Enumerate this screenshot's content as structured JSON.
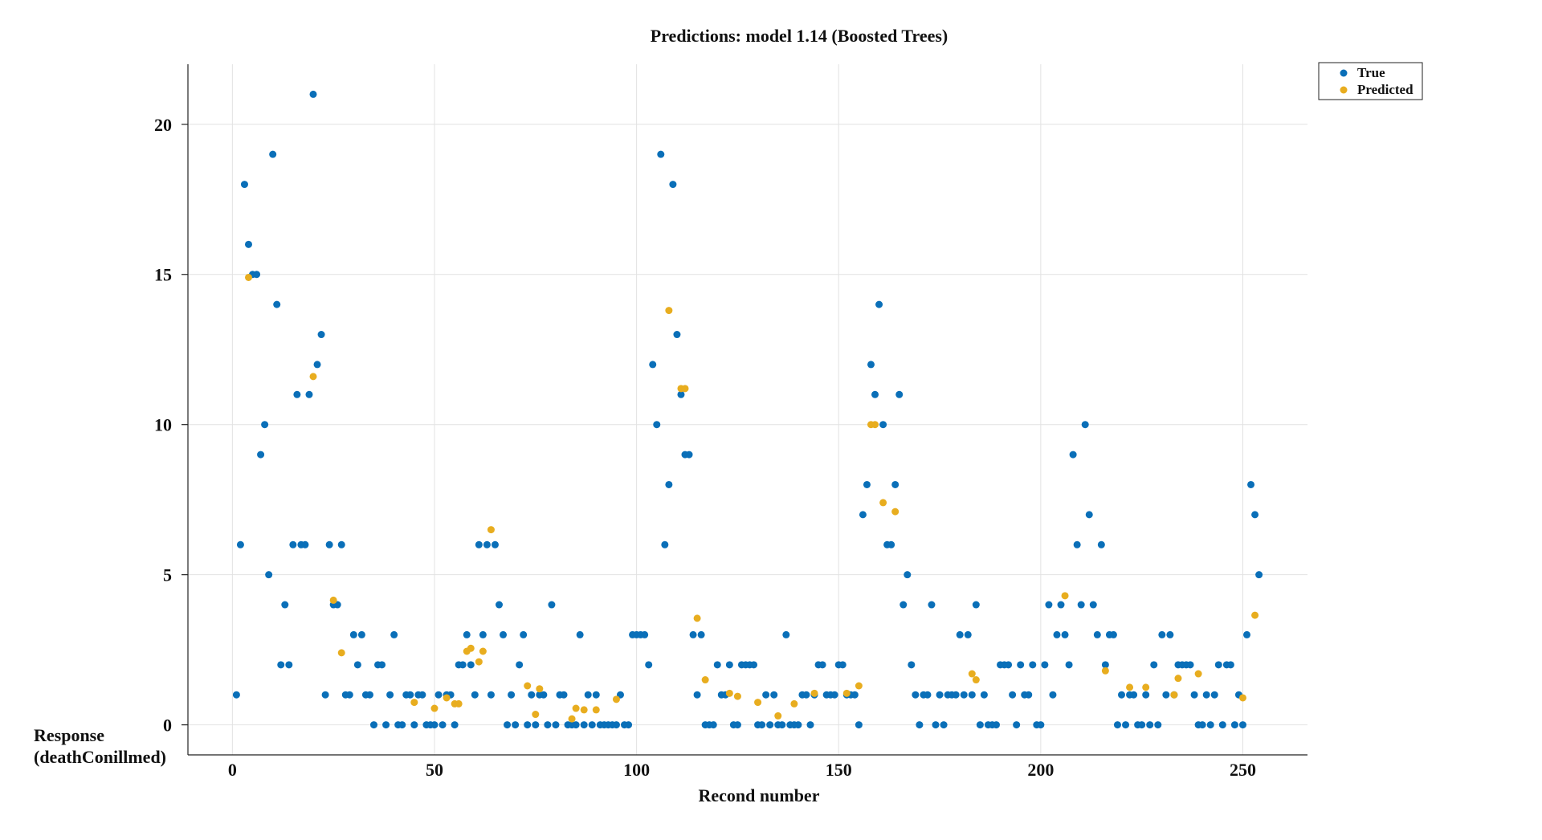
{
  "chart_data": {
    "type": "scatter",
    "title": "Predictions: model 1.14 (Boosted Trees)",
    "xlabel": "Recond number",
    "ylabel": [
      "Response",
      "(deathConillmed)"
    ],
    "xlim": [
      -11,
      266
    ],
    "ylim": [
      -1,
      22
    ],
    "xticks": [
      0,
      50,
      100,
      150,
      200,
      250
    ],
    "yticks": [
      0,
      5,
      10,
      15,
      20
    ],
    "grid": true,
    "legend_position": "top-right",
    "series": [
      {
        "name": "True",
        "color": "#0a6fb8",
        "points": [
          [
            1,
            1
          ],
          [
            2,
            6
          ],
          [
            3,
            18
          ],
          [
            4,
            16
          ],
          [
            5,
            15
          ],
          [
            6,
            15
          ],
          [
            7,
            9
          ],
          [
            8,
            10
          ],
          [
            9,
            5
          ],
          [
            10,
            19
          ],
          [
            11,
            14
          ],
          [
            12,
            2
          ],
          [
            13,
            4
          ],
          [
            14,
            2
          ],
          [
            15,
            6
          ],
          [
            16,
            11
          ],
          [
            17,
            6
          ],
          [
            18,
            6
          ],
          [
            19,
            11
          ],
          [
            20,
            21
          ],
          [
            21,
            12
          ],
          [
            22,
            13
          ],
          [
            23,
            1
          ],
          [
            24,
            6
          ],
          [
            25,
            4
          ],
          [
            26,
            4
          ],
          [
            27,
            6
          ],
          [
            28,
            1
          ],
          [
            29,
            1
          ],
          [
            30,
            3
          ],
          [
            31,
            2
          ],
          [
            32,
            3
          ],
          [
            33,
            1
          ],
          [
            34,
            1
          ],
          [
            35,
            0
          ],
          [
            36,
            2
          ],
          [
            37,
            2
          ],
          [
            38,
            0
          ],
          [
            39,
            1
          ],
          [
            40,
            3
          ],
          [
            41,
            0
          ],
          [
            42,
            0
          ],
          [
            43,
            1
          ],
          [
            44,
            1
          ],
          [
            45,
            0
          ],
          [
            46,
            1
          ],
          [
            47,
            1
          ],
          [
            48,
            0
          ],
          [
            49,
            0
          ],
          [
            50,
            0
          ],
          [
            51,
            1
          ],
          [
            52,
            0
          ],
          [
            53,
            1
          ],
          [
            54,
            1
          ],
          [
            55,
            0
          ],
          [
            56,
            2
          ],
          [
            57,
            2
          ],
          [
            58,
            3
          ],
          [
            59,
            2
          ],
          [
            60,
            1
          ],
          [
            61,
            6
          ],
          [
            62,
            3
          ],
          [
            63,
            6
          ],
          [
            64,
            1
          ],
          [
            65,
            6
          ],
          [
            66,
            4
          ],
          [
            67,
            3
          ],
          [
            68,
            0
          ],
          [
            69,
            1
          ],
          [
            70,
            0
          ],
          [
            71,
            2
          ],
          [
            72,
            3
          ],
          [
            73,
            0
          ],
          [
            74,
            1
          ],
          [
            75,
            0
          ],
          [
            76,
            1
          ],
          [
            77,
            1
          ],
          [
            78,
            0
          ],
          [
            79,
            4
          ],
          [
            80,
            0
          ],
          [
            81,
            1
          ],
          [
            82,
            1
          ],
          [
            83,
            0
          ],
          [
            84,
            0
          ],
          [
            85,
            0
          ],
          [
            86,
            3
          ],
          [
            87,
            0
          ],
          [
            88,
            1
          ],
          [
            89,
            0
          ],
          [
            90,
            1
          ],
          [
            91,
            0
          ],
          [
            92,
            0
          ],
          [
            93,
            0
          ],
          [
            94,
            0
          ],
          [
            95,
            0
          ],
          [
            96,
            1
          ],
          [
            97,
            0
          ],
          [
            98,
            0
          ],
          [
            99,
            3
          ],
          [
            100,
            3
          ],
          [
            101,
            3
          ],
          [
            102,
            3
          ],
          [
            103,
            2
          ],
          [
            104,
            12
          ],
          [
            105,
            10
          ],
          [
            106,
            19
          ],
          [
            107,
            6
          ],
          [
            108,
            8
          ],
          [
            109,
            18
          ],
          [
            110,
            13
          ],
          [
            111,
            11
          ],
          [
            112,
            9
          ],
          [
            113,
            9
          ],
          [
            114,
            3
          ],
          [
            115,
            1
          ],
          [
            116,
            3
          ],
          [
            117,
            0
          ],
          [
            118,
            0
          ],
          [
            119,
            0
          ],
          [
            120,
            2
          ],
          [
            121,
            1
          ],
          [
            122,
            1
          ],
          [
            123,
            2
          ],
          [
            124,
            0
          ],
          [
            125,
            0
          ],
          [
            126,
            2
          ],
          [
            127,
            2
          ],
          [
            128,
            2
          ],
          [
            129,
            2
          ],
          [
            130,
            0
          ],
          [
            131,
            0
          ],
          [
            132,
            1
          ],
          [
            133,
            0
          ],
          [
            134,
            1
          ],
          [
            135,
            0
          ],
          [
            136,
            0
          ],
          [
            137,
            3
          ],
          [
            138,
            0
          ],
          [
            139,
            0
          ],
          [
            140,
            0
          ],
          [
            141,
            1
          ],
          [
            142,
            1
          ],
          [
            143,
            0
          ],
          [
            144,
            1
          ],
          [
            145,
            2
          ],
          [
            146,
            2
          ],
          [
            147,
            1
          ],
          [
            148,
            1
          ],
          [
            149,
            1
          ],
          [
            150,
            2
          ],
          [
            151,
            2
          ],
          [
            152,
            1
          ],
          [
            153,
            1
          ],
          [
            154,
            1
          ],
          [
            155,
            0
          ],
          [
            156,
            7
          ],
          [
            157,
            8
          ],
          [
            158,
            12
          ],
          [
            159,
            11
          ],
          [
            160,
            14
          ],
          [
            161,
            10
          ],
          [
            162,
            6
          ],
          [
            163,
            6
          ],
          [
            164,
            8
          ],
          [
            165,
            11
          ],
          [
            166,
            4
          ],
          [
            167,
            5
          ],
          [
            168,
            2
          ],
          [
            169,
            1
          ],
          [
            170,
            0
          ],
          [
            171,
            1
          ],
          [
            172,
            1
          ],
          [
            173,
            4
          ],
          [
            174,
            0
          ],
          [
            175,
            1
          ],
          [
            176,
            0
          ],
          [
            177,
            1
          ],
          [
            178,
            1
          ],
          [
            179,
            1
          ],
          [
            180,
            3
          ],
          [
            181,
            1
          ],
          [
            182,
            3
          ],
          [
            183,
            1
          ],
          [
            184,
            4
          ],
          [
            185,
            0
          ],
          [
            186,
            1
          ],
          [
            187,
            0
          ],
          [
            188,
            0
          ],
          [
            189,
            0
          ],
          [
            190,
            2
          ],
          [
            191,
            2
          ],
          [
            192,
            2
          ],
          [
            193,
            1
          ],
          [
            194,
            0
          ],
          [
            195,
            2
          ],
          [
            196,
            1
          ],
          [
            197,
            1
          ],
          [
            198,
            2
          ],
          [
            199,
            0
          ],
          [
            200,
            0
          ],
          [
            201,
            2
          ],
          [
            202,
            4
          ],
          [
            203,
            1
          ],
          [
            204,
            3
          ],
          [
            205,
            4
          ],
          [
            206,
            3
          ],
          [
            207,
            2
          ],
          [
            208,
            9
          ],
          [
            209,
            6
          ],
          [
            210,
            4
          ],
          [
            211,
            10
          ],
          [
            212,
            7
          ],
          [
            213,
            4
          ],
          [
            214,
            3
          ],
          [
            215,
            6
          ],
          [
            216,
            2
          ],
          [
            217,
            3
          ],
          [
            218,
            3
          ],
          [
            219,
            0
          ],
          [
            220,
            1
          ],
          [
            221,
            0
          ],
          [
            222,
            1
          ],
          [
            223,
            1
          ],
          [
            224,
            0
          ],
          [
            225,
            0
          ],
          [
            226,
            1
          ],
          [
            227,
            0
          ],
          [
            228,
            2
          ],
          [
            229,
            0
          ],
          [
            230,
            3
          ],
          [
            231,
            1
          ],
          [
            232,
            3
          ],
          [
            233,
            1
          ],
          [
            234,
            2
          ],
          [
            235,
            2
          ],
          [
            236,
            2
          ],
          [
            237,
            2
          ],
          [
            238,
            1
          ],
          [
            239,
            0
          ],
          [
            240,
            0
          ],
          [
            241,
            1
          ],
          [
            242,
            0
          ],
          [
            243,
            1
          ],
          [
            244,
            2
          ],
          [
            245,
            0
          ],
          [
            246,
            2
          ],
          [
            247,
            2
          ],
          [
            248,
            0
          ],
          [
            249,
            1
          ],
          [
            250,
            0
          ],
          [
            251,
            3
          ],
          [
            252,
            8
          ],
          [
            253,
            7
          ],
          [
            254,
            5
          ]
        ]
      },
      {
        "name": "Predicted",
        "color": "#e8ad1f",
        "points": [
          [
            4,
            14.9
          ],
          [
            20,
            11.6
          ],
          [
            25,
            4.15
          ],
          [
            27,
            2.4
          ],
          [
            45,
            0.75
          ],
          [
            50,
            0.55
          ],
          [
            53,
            0.9
          ],
          [
            55,
            0.7
          ],
          [
            56,
            0.7
          ],
          [
            58,
            2.45
          ],
          [
            59,
            2.55
          ],
          [
            61,
            2.1
          ],
          [
            62,
            2.45
          ],
          [
            64,
            6.5
          ],
          [
            73,
            1.3
          ],
          [
            75,
            0.35
          ],
          [
            76,
            1.2
          ],
          [
            84,
            0.2
          ],
          [
            85,
            0.55
          ],
          [
            87,
            0.5
          ],
          [
            90,
            0.5
          ],
          [
            95,
            0.85
          ],
          [
            108,
            13.8
          ],
          [
            111,
            11.2
          ],
          [
            112,
            11.2
          ],
          [
            115,
            3.55
          ],
          [
            117,
            1.5
          ],
          [
            123,
            1.05
          ],
          [
            125,
            0.95
          ],
          [
            130,
            0.75
          ],
          [
            135,
            0.3
          ],
          [
            139,
            0.7
          ],
          [
            144,
            1.05
          ],
          [
            152,
            1.05
          ],
          [
            155,
            1.3
          ],
          [
            158,
            10
          ],
          [
            159,
            10
          ],
          [
            161,
            7.4
          ],
          [
            164,
            7.1
          ],
          [
            183,
            1.7
          ],
          [
            184,
            1.5
          ],
          [
            206,
            4.3
          ],
          [
            216,
            1.8
          ],
          [
            222,
            1.25
          ],
          [
            226,
            1.25
          ],
          [
            234,
            1.55
          ],
          [
            233,
            1.0
          ],
          [
            239,
            1.7
          ],
          [
            250,
            0.9
          ],
          [
            253,
            3.65
          ]
        ]
      }
    ]
  }
}
